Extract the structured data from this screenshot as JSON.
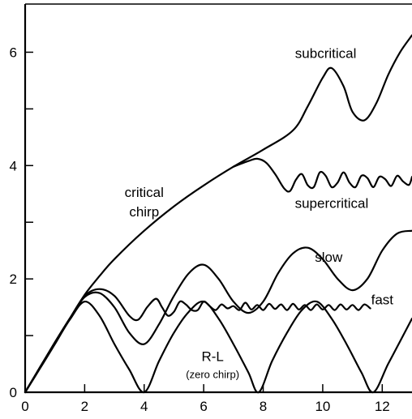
{
  "chart_data": {
    "type": "line",
    "title": "",
    "xlabel": "",
    "ylabel": "",
    "xlim": [
      0,
      13
    ],
    "ylim": [
      0,
      6.85
    ],
    "x_ticks": [
      0,
      2,
      4,
      6,
      8,
      10,
      12
    ],
    "x_tick_labels": [
      "0",
      "2",
      "4",
      "6",
      "8",
      "10",
      "12"
    ],
    "y_ticks": [
      0,
      1,
      2,
      3,
      4,
      5,
      6
    ],
    "y_tick_labels": [
      "0",
      "",
      "2",
      "",
      "4",
      "",
      "6"
    ],
    "grid": false,
    "legend": "none",
    "series": [
      {
        "name": "R-L (zero chirp)",
        "x": [
          0,
          0.5,
          1.0,
          1.5,
          2.0,
          2.5,
          3.0,
          3.5,
          4.0,
          4.5,
          5.0,
          5.5,
          6.0,
          6.5,
          7.0,
          7.5,
          7.85,
          8.3,
          8.8,
          9.3,
          9.8,
          10.3,
          10.8,
          11.3,
          11.7,
          12.2,
          12.7,
          13.0
        ],
        "y": [
          0,
          0.42,
          0.85,
          1.28,
          1.6,
          1.35,
          0.85,
          0.4,
          0.0,
          0.55,
          1.05,
          1.42,
          1.6,
          1.3,
          0.85,
          0.35,
          0.0,
          0.55,
          1.05,
          1.45,
          1.6,
          1.3,
          0.85,
          0.35,
          0.0,
          0.5,
          1.0,
          1.3
        ]
      },
      {
        "name": "slow",
        "x": [
          0,
          0.5,
          1.0,
          1.5,
          2.0,
          2.5,
          3.0,
          3.5,
          4.0,
          4.5,
          5.0,
          5.5,
          6.0,
          6.5,
          7.0,
          7.5,
          8.0,
          8.5,
          9.0,
          9.5,
          10.0,
          10.5,
          11.0,
          11.5,
          12.0,
          12.5,
          13.0
        ],
        "y": [
          0,
          0.44,
          0.88,
          1.3,
          1.68,
          1.75,
          1.5,
          1.05,
          0.85,
          1.2,
          1.7,
          2.1,
          2.25,
          2.0,
          1.6,
          1.4,
          1.6,
          2.1,
          2.45,
          2.55,
          2.35,
          2.0,
          1.8,
          2.0,
          2.5,
          2.8,
          2.85
        ]
      },
      {
        "name": "fast",
        "x": [
          0,
          0.5,
          1.0,
          1.5,
          2.0,
          2.5,
          3.0,
          3.5,
          3.8,
          4.1,
          4.4,
          4.6,
          4.8,
          5.0,
          5.2,
          5.4,
          5.6,
          5.8,
          6.0,
          6.2,
          6.4,
          6.6,
          6.8,
          7.0,
          7.2,
          7.4,
          7.6,
          7.8,
          8.0,
          8.2,
          8.4,
          8.6,
          8.8,
          9.0,
          9.2,
          9.4,
          9.6,
          9.8,
          10.0,
          10.2,
          10.4,
          10.6,
          10.8,
          11.0,
          11.2,
          11.4,
          11.6
        ],
        "y": [
          0,
          0.44,
          0.88,
          1.3,
          1.7,
          1.82,
          1.7,
          1.35,
          1.28,
          1.5,
          1.65,
          1.5,
          1.35,
          1.42,
          1.6,
          1.55,
          1.45,
          1.45,
          1.6,
          1.52,
          1.45,
          1.55,
          1.48,
          1.52,
          1.45,
          1.58,
          1.46,
          1.54,
          1.45,
          1.56,
          1.47,
          1.55,
          1.45,
          1.56,
          1.46,
          1.54,
          1.45,
          1.55,
          1.46,
          1.54,
          1.45,
          1.55,
          1.46,
          1.54,
          1.45,
          1.55,
          1.48
        ]
      },
      {
        "name": "critical chirp",
        "x": [
          0,
          0.5,
          1.0,
          1.5,
          2.0,
          2.5,
          3.0,
          4.0,
          5.0,
          6.0,
          7.0,
          8.0,
          9.0,
          9.5,
          10.0,
          10.3,
          10.7,
          11.0,
          11.4,
          11.8,
          12.2,
          12.6,
          13.0
        ],
        "y": [
          0,
          0.44,
          0.88,
          1.3,
          1.72,
          2.05,
          2.35,
          2.85,
          3.28,
          3.65,
          3.98,
          4.28,
          4.62,
          5.05,
          5.55,
          5.72,
          5.4,
          4.95,
          4.8,
          5.1,
          5.6,
          6.0,
          6.3
        ]
      },
      {
        "name": "supercritical",
        "x": [
          7.0,
          7.5,
          7.8,
          8.1,
          8.4,
          8.7,
          8.9,
          9.1,
          9.3,
          9.5,
          9.7,
          9.9,
          10.1,
          10.3,
          10.5,
          10.7,
          10.9,
          11.1,
          11.3,
          11.5,
          11.7,
          11.9,
          12.1,
          12.3,
          12.5,
          12.7,
          12.9,
          13.0
        ],
        "y": [
          3.98,
          4.08,
          4.12,
          4.05,
          3.85,
          3.6,
          3.55,
          3.75,
          3.85,
          3.65,
          3.62,
          3.88,
          3.82,
          3.62,
          3.7,
          3.88,
          3.7,
          3.62,
          3.82,
          3.78,
          3.62,
          3.8,
          3.76,
          3.64,
          3.82,
          3.72,
          3.66,
          3.8
        ]
      }
    ],
    "annotations": [
      {
        "text": "subcritical",
        "x": 10.1,
        "y": 5.9
      },
      {
        "text": "critical",
        "x": 4.0,
        "y": 3.45
      },
      {
        "text": "chirp",
        "x": 4.0,
        "y": 3.1
      },
      {
        "text": "supercritical",
        "x": 10.3,
        "y": 3.25
      },
      {
        "text": "slow",
        "x": 10.2,
        "y": 2.3
      },
      {
        "text": "fast",
        "x": 12.0,
        "y": 1.55
      },
      {
        "text": "R-L",
        "x": 6.3,
        "y": 0.55
      },
      {
        "text": "(zero chirp)",
        "x": 6.3,
        "y": 0.25
      }
    ]
  }
}
